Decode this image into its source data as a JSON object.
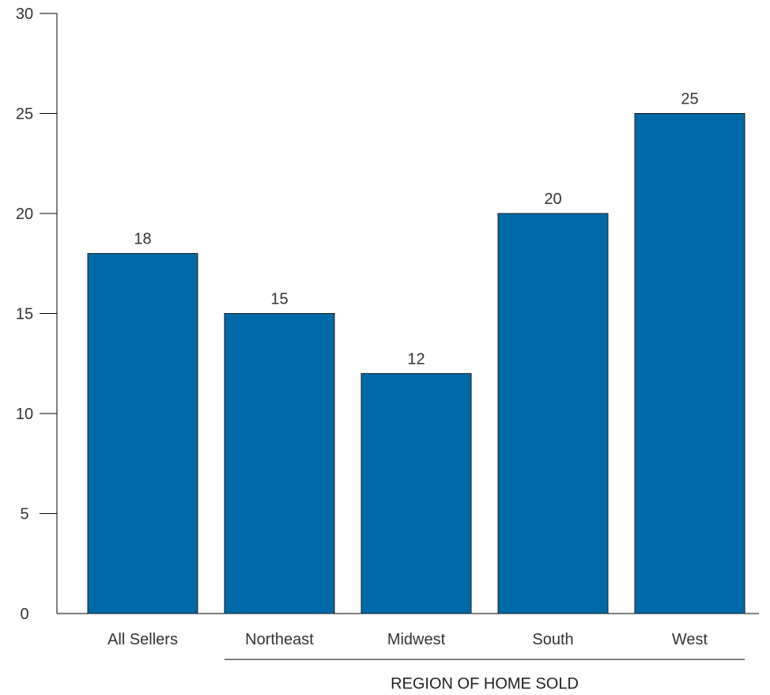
{
  "chart_data": {
    "type": "bar",
    "categories": [
      "All Sellers",
      "Northeast",
      "Midwest",
      "South",
      "West"
    ],
    "values": [
      18,
      15,
      12,
      20,
      25
    ],
    "title": "",
    "xlabel": "",
    "ylabel": "",
    "group_label": "REGION OF HOME SOLD",
    "group_categories": [
      "Northeast",
      "Midwest",
      "South",
      "West"
    ],
    "ylim": [
      0,
      30
    ],
    "yticks": [
      "0",
      "5",
      "10",
      "15",
      "20",
      "25",
      "30"
    ],
    "ytick_values": [
      0,
      5,
      10,
      15,
      20,
      25,
      30
    ],
    "grid": false,
    "legend": "none",
    "bar_color": "#006aa8"
  }
}
